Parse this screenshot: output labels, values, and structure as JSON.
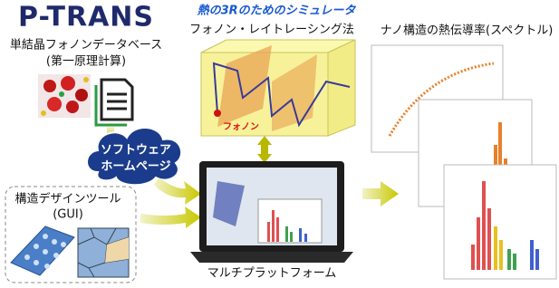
{
  "logo": "P-TRANS",
  "database": {
    "title": "単結晶フォノンデータベース",
    "subtitle": "(第一原理計算)"
  },
  "cloud": {
    "line1": "ソフトウェア",
    "line2": "ホームページ"
  },
  "simulator": {
    "heading": "熱の3Rのためのシミュレータ",
    "method": "フォノン・レイトレーシング法",
    "phonon_label": "フォノン"
  },
  "results": {
    "title": "ナノ構造の熱伝導率(スペクトル)"
  },
  "design_tool": {
    "title": "構造デザインツール",
    "subtitle": "(GUI)"
  },
  "platform": {
    "label": "マルチプラットフォーム"
  }
}
